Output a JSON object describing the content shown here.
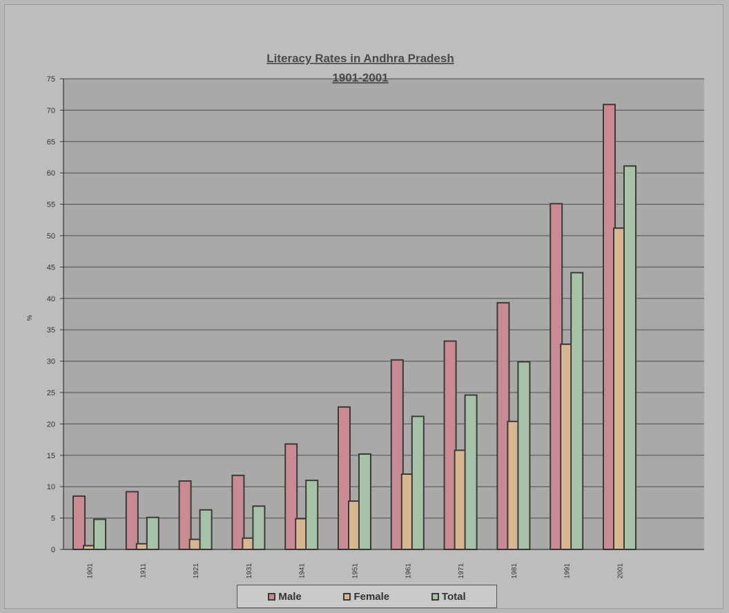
{
  "chart_data": {
    "type": "bar",
    "title": "Literacy Rates in Andhra Pradesh",
    "subtitle": "1901-2001",
    "xlabel": "",
    "ylabel": "%",
    "ylim": [
      0,
      75
    ],
    "yticks": [
      0,
      5,
      10,
      15,
      20,
      25,
      30,
      35,
      40,
      45,
      50,
      55,
      60,
      65,
      70,
      75
    ],
    "grid": true,
    "legend": "bottom",
    "categories": [
      "1901",
      "1911",
      "1921",
      "1931",
      "1941",
      "1951",
      "1961",
      "1971",
      "1981",
      "1991",
      "2001"
    ],
    "series": [
      {
        "name": "Male",
        "color": "#c98a93",
        "values": [
          8.5,
          9.2,
          10.9,
          11.8,
          16.8,
          22.7,
          30.2,
          33.2,
          39.3,
          55.1,
          70.9
        ]
      },
      {
        "name": "Female",
        "color": "#d8b690",
        "values": [
          0.6,
          0.9,
          1.6,
          1.8,
          4.9,
          7.7,
          12.0,
          15.8,
          20.4,
          32.7,
          51.2
        ]
      },
      {
        "name": "Total",
        "color": "#a7c3a7",
        "values": [
          4.8,
          5.1,
          6.3,
          6.9,
          11.0,
          15.2,
          21.2,
          24.6,
          29.9,
          44.1,
          61.1
        ]
      }
    ],
    "colors": {
      "plot_background": "#a9aaa7",
      "grid": "#4d4d4d",
      "bar_outline": "#3a3a3a"
    }
  }
}
